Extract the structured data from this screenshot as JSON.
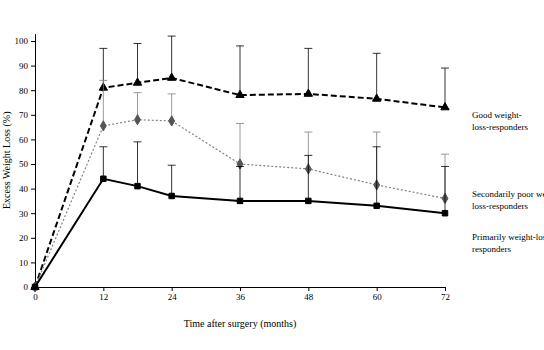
{
  "chart_data": {
    "type": "line",
    "x_label": "Time after surgery (months)",
    "y_label": "Excess Weight Loss (%)",
    "x": [
      0,
      12,
      18,
      24,
      36,
      48,
      60,
      72
    ],
    "xlim": [
      0,
      72
    ],
    "xticks": [
      0,
      12,
      24,
      36,
      48,
      60,
      72
    ],
    "ylim": [
      0,
      103
    ],
    "yticks": [
      0,
      10,
      20,
      30,
      40,
      50,
      60,
      70,
      80,
      90,
      100
    ],
    "grid": false,
    "series": [
      {
        "name": "Good weight-\nloss-responders",
        "color": "#000000",
        "marker": "triangle",
        "line_style": "dashed",
        "values": [
          0,
          81,
          83,
          85,
          78,
          78.5,
          76.5,
          73
        ],
        "errors": [
          null,
          16,
          16,
          17,
          20,
          18.5,
          18.5,
          16
        ]
      },
      {
        "name": "Secondarily poor weight-\nloss-responders",
        "color": "#808080",
        "marker": "diamond",
        "line_style": "dotted",
        "values": [
          0,
          65.5,
          68,
          67.5,
          50,
          48,
          41.5,
          36
        ],
        "errors": [
          null,
          18.5,
          11,
          11,
          16.5,
          15,
          21.5,
          18
        ]
      },
      {
        "name": "Primarily weight-loss-\nresponders",
        "color": "#000000",
        "marker": "square",
        "line_style": "solid",
        "values": [
          0,
          44,
          41,
          37,
          35,
          35,
          33,
          30
        ],
        "errors": [
          null,
          13,
          18,
          12.5,
          14,
          18.5,
          24,
          19
        ]
      }
    ]
  }
}
